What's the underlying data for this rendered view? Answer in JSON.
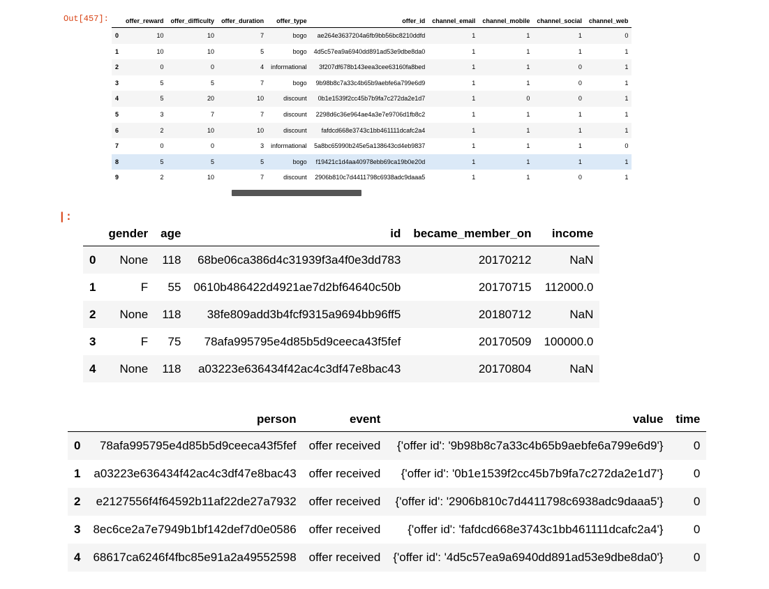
{
  "prompts": {
    "out1": "Out[457]:",
    "out2": "|:"
  },
  "offers_table": {
    "columns": [
      "",
      "offer_reward",
      "offer_difficulty",
      "offer_duration",
      "offer_type",
      "offer_id",
      "channel_email",
      "channel_mobile",
      "channel_social",
      "channel_web"
    ],
    "rows": [
      [
        "0",
        "10",
        "10",
        "7",
        "bogo",
        "ae264e3637204a6fb9bb56bc8210ddfd",
        "1",
        "1",
        "1",
        "0"
      ],
      [
        "1",
        "10",
        "10",
        "5",
        "bogo",
        "4d5c57ea9a6940dd891ad53e9dbe8da0",
        "1",
        "1",
        "1",
        "1"
      ],
      [
        "2",
        "0",
        "0",
        "4",
        "informational",
        "3f207df678b143eea3cee63160fa8bed",
        "1",
        "1",
        "0",
        "1"
      ],
      [
        "3",
        "5",
        "5",
        "7",
        "bogo",
        "9b98b8c7a33c4b65b9aebfe6a799e6d9",
        "1",
        "1",
        "0",
        "1"
      ],
      [
        "4",
        "5",
        "20",
        "10",
        "discount",
        "0b1e1539f2cc45b7b9fa7c272da2e1d7",
        "1",
        "0",
        "0",
        "1"
      ],
      [
        "5",
        "3",
        "7",
        "7",
        "discount",
        "2298d6c36e964ae4a3e7e9706d1fb8c2",
        "1",
        "1",
        "1",
        "1"
      ],
      [
        "6",
        "2",
        "10",
        "10",
        "discount",
        "fafdcd668e3743c1bb461111dcafc2a4",
        "1",
        "1",
        "1",
        "1"
      ],
      [
        "7",
        "0",
        "0",
        "3",
        "informational",
        "5a8bc65990b245e5a138643cd4eb9837",
        "1",
        "1",
        "1",
        "0"
      ],
      [
        "8",
        "5",
        "5",
        "5",
        "bogo",
        "f19421c1d4aa40978ebb69ca19b0e20d",
        "1",
        "1",
        "1",
        "1"
      ],
      [
        "9",
        "2",
        "10",
        "7",
        "discount",
        "2906b810c7d4411798c6938adc9daaa5",
        "1",
        "1",
        "0",
        "1"
      ]
    ],
    "highlighted_row": 8
  },
  "profile_table": {
    "columns": [
      "",
      "gender",
      "age",
      "id",
      "became_member_on",
      "income"
    ],
    "rows": [
      [
        "0",
        "None",
        "118",
        "68be06ca386d4c31939f3a4f0e3dd783",
        "20170212",
        "NaN"
      ],
      [
        "1",
        "F",
        "55",
        "0610b486422d4921ae7d2bf64640c50b",
        "20170715",
        "112000.0"
      ],
      [
        "2",
        "None",
        "118",
        "38fe809add3b4fcf9315a9694bb96ff5",
        "20180712",
        "NaN"
      ],
      [
        "3",
        "F",
        "75",
        "78afa995795e4d85b5d9ceeca43f5fef",
        "20170509",
        "100000.0"
      ],
      [
        "4",
        "None",
        "118",
        "a03223e636434f42ac4c3df47e8bac43",
        "20170804",
        "NaN"
      ]
    ]
  },
  "transcript_table": {
    "columns": [
      "",
      "person",
      "event",
      "value",
      "time"
    ],
    "rows": [
      [
        "0",
        "78afa995795e4d85b5d9ceeca43f5fef",
        "offer received",
        "{'offer id': '9b98b8c7a33c4b65b9aebfe6a799e6d9'}",
        "0"
      ],
      [
        "1",
        "a03223e636434f42ac4c3df47e8bac43",
        "offer received",
        "{'offer id': '0b1e1539f2cc45b7b9fa7c272da2e1d7'}",
        "0"
      ],
      [
        "2",
        "e2127556f4f64592b11af22de27a7932",
        "offer received",
        "{'offer id': '2906b810c7d4411798c6938adc9daaa5'}",
        "0"
      ],
      [
        "3",
        "8ec6ce2a7e7949b1bf142def7d0e0586",
        "offer received",
        "{'offer id': 'fafdcd668e3743c1bb461111dcafc2a4'}",
        "0"
      ],
      [
        "4",
        "68617ca6246f4fbc85e91a2a49552598",
        "offer received",
        "{'offer id': '4d5c57ea9a6940dd891ad53e9dbe8da0'}",
        "0"
      ]
    ]
  },
  "colors": {
    "prompt": "#d84315",
    "row_stripe": "#f5f5f5",
    "row_highlight": "#dbe9f7"
  }
}
